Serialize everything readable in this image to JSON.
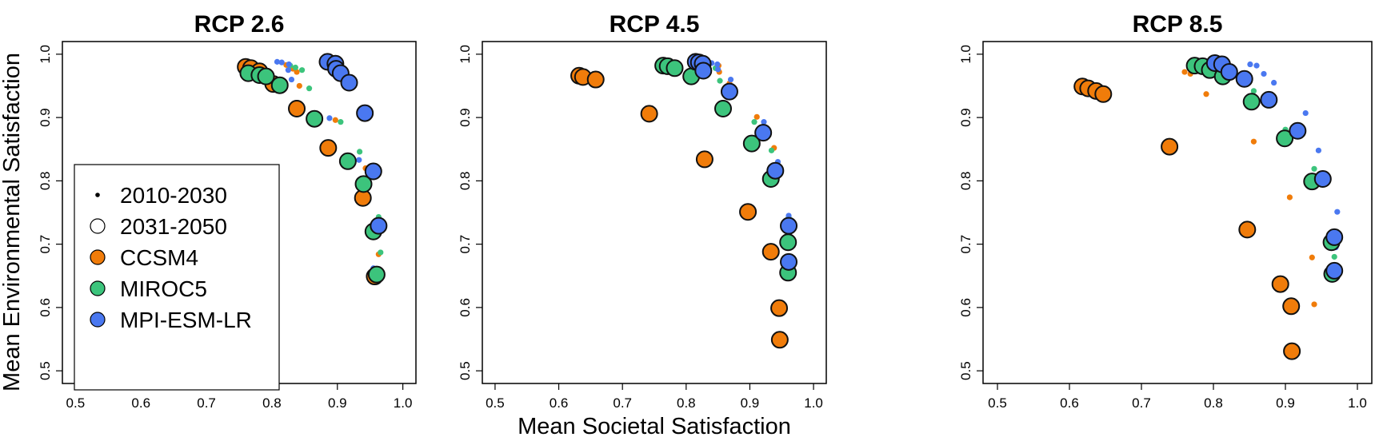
{
  "chart_data": {
    "type": "scatter",
    "ylabel": "Mean Environmental Satisfaction",
    "xlabel": "Mean Societal Satisfaction",
    "xlim": [
      0.48,
      1.02
    ],
    "ylim": [
      0.48,
      1.02
    ],
    "x_ticks": [
      "0.5",
      "0.6",
      "0.7",
      "0.8",
      "0.9",
      "1.0"
    ],
    "y_ticks": [
      "0.5",
      "0.6",
      "0.7",
      "0.8",
      "0.9",
      "1.0"
    ],
    "grid": false,
    "legend": {
      "placement": "bottom-left of first panel",
      "entries": [
        {
          "label": "2010-2030",
          "marker": "small-dot",
          "color": "#000000"
        },
        {
          "label": "2031-2050",
          "marker": "open-circle",
          "color": "#000000"
        },
        {
          "label": "CCSM4",
          "marker": "filled-circle",
          "color": "#F07C0A"
        },
        {
          "label": "MIROC5",
          "marker": "filled-circle",
          "color": "#3CC47C"
        },
        {
          "label": "MPI-ESM-LR",
          "marker": "filled-circle",
          "color": "#4A78F0"
        }
      ]
    },
    "models": {
      "CCSM4": "#F07C0A",
      "MIROC5": "#3CC47C",
      "MPI-ESM-LR": "#4A78F0"
    },
    "panels": [
      {
        "title": "RCP 2.6",
        "series": [
          {
            "model": "CCSM4",
            "period": "2010-2030",
            "points": [
              [
                0.822,
                0.983
              ],
              [
                0.832,
                0.977
              ],
              [
                0.838,
                0.972
              ],
              [
                0.842,
                0.95
              ],
              [
                0.897,
                0.896
              ],
              [
                0.943,
                0.82
              ],
              [
                0.963,
                0.684
              ]
            ]
          },
          {
            "model": "MIROC5",
            "period": "2010-2030",
            "points": [
              [
                0.828,
                0.982
              ],
              [
                0.836,
                0.979
              ],
              [
                0.846,
                0.975
              ],
              [
                0.857,
                0.946
              ],
              [
                0.905,
                0.893
              ],
              [
                0.934,
                0.846
              ],
              [
                0.963,
                0.743
              ],
              [
                0.966,
                0.687
              ]
            ]
          },
          {
            "model": "MPI-ESM-LR",
            "period": "2010-2030",
            "points": [
              [
                0.808,
                0.988
              ],
              [
                0.815,
                0.987
              ],
              [
                0.826,
                0.984
              ],
              [
                0.825,
                0.975
              ],
              [
                0.83,
                0.96
              ],
              [
                0.888,
                0.899
              ],
              [
                0.933,
                0.833
              ],
              [
                0.956,
                0.72
              ],
              [
                0.955,
                0.662
              ]
            ]
          },
          {
            "model": "CCSM4",
            "period": "2031-2050",
            "points": [
              [
                0.76,
                0.98
              ],
              [
                0.768,
                0.978
              ],
              [
                0.781,
                0.973
              ],
              [
                0.802,
                0.953
              ],
              [
                0.838,
                0.914
              ],
              [
                0.886,
                0.852
              ],
              [
                0.939,
                0.773
              ],
              [
                0.957,
                0.649
              ]
            ]
          },
          {
            "model": "MIROC5",
            "period": "2031-2050",
            "points": [
              [
                0.764,
                0.97
              ],
              [
                0.781,
                0.967
              ],
              [
                0.791,
                0.965
              ],
              [
                0.812,
                0.951
              ],
              [
                0.865,
                0.898
              ],
              [
                0.916,
                0.831
              ],
              [
                0.94,
                0.795
              ],
              [
                0.955,
                0.72
              ],
              [
                0.96,
                0.652
              ]
            ]
          },
          {
            "model": "MPI-ESM-LR",
            "period": "2031-2050",
            "points": [
              [
                0.885,
                0.988
              ],
              [
                0.897,
                0.985
              ],
              [
                0.898,
                0.977
              ],
              [
                0.905,
                0.97
              ],
              [
                0.918,
                0.955
              ],
              [
                0.942,
                0.907
              ],
              [
                0.955,
                0.815
              ],
              [
                0.963,
                0.729
              ]
            ]
          }
        ]
      },
      {
        "title": "RCP 4.5",
        "series": [
          {
            "model": "CCSM4",
            "period": "2010-2030",
            "points": [
              [
                0.851,
                0.982
              ],
              [
                0.852,
                0.972
              ],
              [
                0.868,
                0.954
              ],
              [
                0.911,
                0.901
              ],
              [
                0.938,
                0.852
              ]
            ]
          },
          {
            "model": "MIROC5",
            "period": "2010-2030",
            "points": [
              [
                0.835,
                0.983
              ],
              [
                0.846,
                0.978
              ],
              [
                0.853,
                0.958
              ],
              [
                0.907,
                0.893
              ],
              [
                0.934,
                0.848
              ],
              [
                0.961,
                0.743
              ]
            ]
          },
          {
            "model": "MPI-ESM-LR",
            "period": "2010-2030",
            "points": [
              [
                0.84,
                0.986
              ],
              [
                0.849,
                0.984
              ],
              [
                0.85,
                0.976
              ],
              [
                0.87,
                0.96
              ],
              [
                0.922,
                0.893
              ],
              [
                0.944,
                0.83
              ],
              [
                0.961,
                0.745
              ]
            ]
          },
          {
            "model": "CCSM4",
            "period": "2031-2050",
            "points": [
              [
                0.632,
                0.966
              ],
              [
                0.638,
                0.964
              ],
              [
                0.658,
                0.96
              ],
              [
                0.742,
                0.906
              ],
              [
                0.829,
                0.834
              ],
              [
                0.897,
                0.751
              ],
              [
                0.933,
                0.688
              ],
              [
                0.946,
                0.599
              ],
              [
                0.947,
                0.549
              ]
            ]
          },
          {
            "model": "MIROC5",
            "period": "2031-2050",
            "points": [
              [
                0.764,
                0.982
              ],
              [
                0.771,
                0.981
              ],
              [
                0.782,
                0.978
              ],
              [
                0.808,
                0.965
              ],
              [
                0.858,
                0.914
              ],
              [
                0.903,
                0.859
              ],
              [
                0.933,
                0.803
              ],
              [
                0.96,
                0.703
              ],
              [
                0.96,
                0.655
              ]
            ]
          },
          {
            "model": "MPI-ESM-LR",
            "period": "2031-2050",
            "points": [
              [
                0.815,
                0.988
              ],
              [
                0.82,
                0.987
              ],
              [
                0.826,
                0.985
              ],
              [
                0.827,
                0.974
              ],
              [
                0.868,
                0.941
              ],
              [
                0.921,
                0.876
              ],
              [
                0.94,
                0.816
              ],
              [
                0.961,
                0.729
              ],
              [
                0.961,
                0.672
              ]
            ]
          }
        ]
      },
      {
        "title": "RCP 8.5",
        "series": [
          {
            "model": "CCSM4",
            "period": "2010-2030",
            "points": [
              [
                0.76,
                0.972
              ],
              [
                0.768,
                0.969
              ],
              [
                0.79,
                0.937
              ],
              [
                0.856,
                0.862
              ],
              [
                0.906,
                0.774
              ],
              [
                0.937,
                0.679
              ],
              [
                0.94,
                0.605
              ]
            ]
          },
          {
            "model": "MIROC5",
            "period": "2010-2030",
            "points": [
              [
                0.856,
                0.942
              ],
              [
                0.9,
                0.881
              ],
              [
                0.94,
                0.819
              ],
              [
                0.965,
                0.715
              ],
              [
                0.968,
                0.68
              ]
            ]
          },
          {
            "model": "MPI-ESM-LR",
            "period": "2010-2030",
            "points": [
              [
                0.851,
                0.984
              ],
              [
                0.86,
                0.982
              ],
              [
                0.87,
                0.969
              ],
              [
                0.884,
                0.955
              ],
              [
                0.928,
                0.907
              ],
              [
                0.946,
                0.848
              ],
              [
                0.972,
                0.751
              ],
              [
                0.97,
                0.695
              ]
            ]
          },
          {
            "model": "CCSM4",
            "period": "2031-2050",
            "points": [
              [
                0.618,
                0.949
              ],
              [
                0.626,
                0.946
              ],
              [
                0.637,
                0.942
              ],
              [
                0.647,
                0.937
              ],
              [
                0.739,
                0.854
              ],
              [
                0.847,
                0.723
              ],
              [
                0.893,
                0.637
              ],
              [
                0.908,
                0.602
              ],
              [
                0.909,
                0.531
              ]
            ]
          },
          {
            "model": "MIROC5",
            "period": "2031-2050",
            "points": [
              [
                0.774,
                0.982
              ],
              [
                0.785,
                0.981
              ],
              [
                0.795,
                0.975
              ],
              [
                0.813,
                0.965
              ],
              [
                0.853,
                0.925
              ],
              [
                0.899,
                0.867
              ],
              [
                0.937,
                0.799
              ],
              [
                0.964,
                0.703
              ],
              [
                0.965,
                0.653
              ]
            ]
          },
          {
            "model": "MPI-ESM-LR",
            "period": "2031-2050",
            "points": [
              [
                0.802,
                0.986
              ],
              [
                0.812,
                0.984
              ],
              [
                0.822,
                0.972
              ],
              [
                0.843,
                0.961
              ],
              [
                0.877,
                0.928
              ],
              [
                0.917,
                0.879
              ],
              [
                0.952,
                0.803
              ],
              [
                0.968,
                0.711
              ],
              [
                0.968,
                0.658
              ]
            ]
          }
        ]
      }
    ]
  }
}
